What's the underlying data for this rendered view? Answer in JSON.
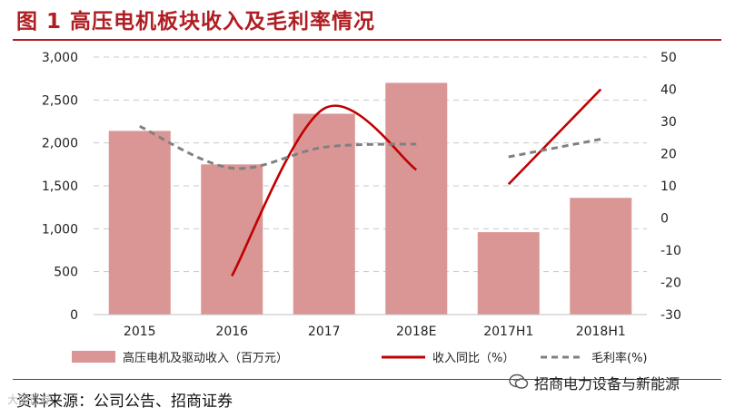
{
  "figure_title": "图 1  高压电机板块收入及毛利率情况",
  "source_text": "资料来源：公司公告、招商证券",
  "brand_text": "招商电力设备与新能源",
  "watermark_text": "大国证券",
  "colors": {
    "bar": "#d99694",
    "growth_line": "#c00000",
    "margin_line": "#808080",
    "title": "#b01e23"
  },
  "chart_data": {
    "type": "bar",
    "categories": [
      "2015",
      "2016",
      "2017",
      "2018E",
      "2017H1",
      "2018H1"
    ],
    "series": [
      {
        "name": "高压电机及驱动收入（百万元）",
        "type": "bar",
        "axis": "left",
        "values": [
          2140,
          1750,
          2340,
          2700,
          960,
          1360
        ]
      },
      {
        "name": "收入同比（%）",
        "type": "line",
        "style": "solid",
        "axis": "right",
        "values": [
          null,
          -18,
          34,
          15,
          10.5,
          40
        ],
        "segments": [
          [
            1,
            3
          ],
          [
            4,
            5
          ]
        ]
      },
      {
        "name": "毛利率(%)",
        "type": "line",
        "style": "dashed",
        "axis": "right",
        "values": [
          28.5,
          15.5,
          22,
          23,
          19,
          24.5
        ],
        "segments": [
          [
            0,
            3
          ],
          [
            4,
            5
          ]
        ]
      }
    ],
    "y_left": {
      "min": 0,
      "max": 3000,
      "ticks": [
        "0",
        "500",
        "1,000",
        "1,500",
        "2,000",
        "2,500",
        "3,000"
      ]
    },
    "y_right": {
      "min": -30,
      "max": 50,
      "ticks": [
        "-30",
        "-20",
        "-10",
        "0",
        "10",
        "20",
        "30",
        "40",
        "50"
      ]
    },
    "grid": true,
    "legend_position": "bottom"
  }
}
